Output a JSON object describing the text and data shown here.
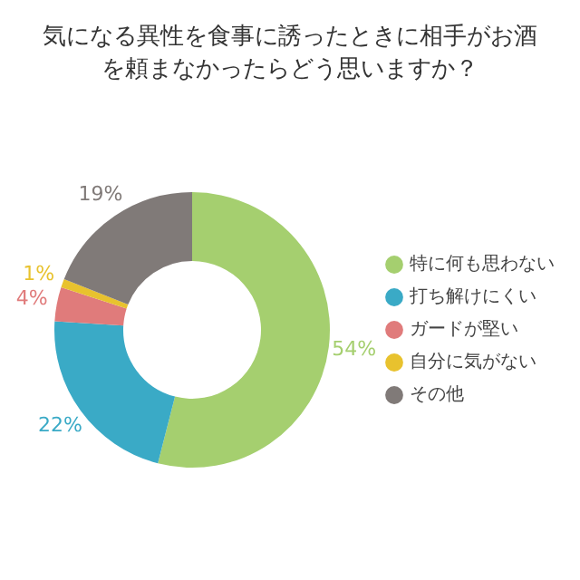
{
  "chart_data": {
    "type": "donut",
    "title": "気になる異性を食事に誘ったときに相手がお酒を頼まなかったらどう思いますか？",
    "categories": [
      "特に何も思わない",
      "打ち解けにくい",
      "ガードが堅い",
      "自分に気がない",
      "その他"
    ],
    "values": [
      54,
      22,
      4,
      1,
      19
    ],
    "colors": [
      "#a5cf6f",
      "#3aaac6",
      "#e07b7b",
      "#e8c22e",
      "#807a78"
    ],
    "value_labels": [
      "54%",
      "22%",
      "4%",
      "1%",
      "19%"
    ],
    "legend": "right"
  }
}
